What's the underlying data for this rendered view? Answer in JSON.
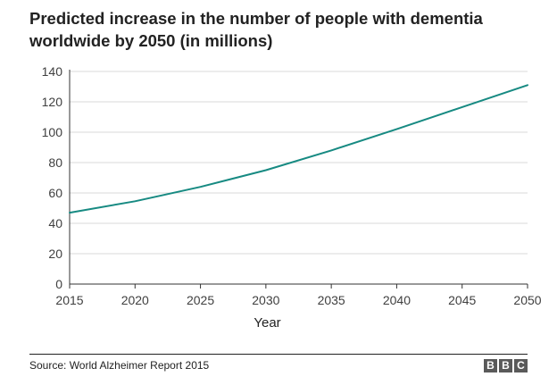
{
  "title": "Predicted increase in the number of people with dementia worldwide by 2050 (in millions)",
  "source": "Source: World Alzheimer Report 2015",
  "logo": [
    "B",
    "B",
    "C"
  ],
  "colors": {
    "line": "#178a82",
    "grid": "#d9d9d9",
    "axis": "#333333"
  },
  "chart_data": {
    "type": "line",
    "title": "Predicted increase in the number of people with dementia worldwide by 2050 (in millions)",
    "xlabel": "Year",
    "ylabel": "",
    "x": [
      2015,
      2020,
      2025,
      2030,
      2035,
      2040,
      2045,
      2050
    ],
    "series": [
      {
        "values": [
          47,
          54.5,
          64,
          75,
          88,
          102,
          116.5,
          131
        ]
      }
    ],
    "xlim": [
      2015,
      2050
    ],
    "ylim": [
      0,
      140
    ],
    "yticks": [
      0,
      20,
      40,
      60,
      80,
      100,
      120,
      140
    ],
    "xticks": [
      2015,
      2020,
      2025,
      2030,
      2035,
      2040,
      2045,
      2050
    ],
    "grid": true,
    "legend": "none"
  }
}
